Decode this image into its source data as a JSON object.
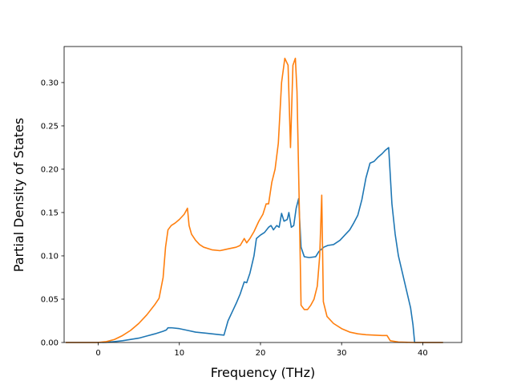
{
  "chart_data": {
    "type": "line",
    "title": "",
    "xlabel": "Frequency (THz)",
    "ylabel": "Partial Density of States",
    "xlim": [
      -4.2,
      44.8
    ],
    "ylim": [
      0,
      0.3416
    ],
    "xticks": [
      0,
      10,
      20,
      30,
      40
    ],
    "xtick_labels": [
      "0",
      "10",
      "20",
      "30",
      "40"
    ],
    "yticks": [
      0,
      0.05,
      0.1,
      0.15,
      0.2,
      0.25,
      0.3
    ],
    "ytick_labels": [
      "0.00",
      "0.05",
      "0.10",
      "0.15",
      "0.20",
      "0.25",
      "0.30"
    ],
    "grid": false,
    "legend": "none",
    "series": [
      {
        "color": "#1f77b4",
        "points": [
          [
            -4.0,
            0.0
          ],
          [
            0.0,
            0.0
          ],
          [
            1.0,
            0.0002
          ],
          [
            2.0,
            0.001
          ],
          [
            3.0,
            0.002
          ],
          [
            4.0,
            0.0035
          ],
          [
            5.0,
            0.005
          ],
          [
            6.0,
            0.0075
          ],
          [
            7.0,
            0.01
          ],
          [
            8.0,
            0.013
          ],
          [
            8.4,
            0.0145
          ],
          [
            8.6,
            0.017
          ],
          [
            9.0,
            0.017
          ],
          [
            10.0,
            0.016
          ],
          [
            11.0,
            0.014
          ],
          [
            12.0,
            0.012
          ],
          [
            14.0,
            0.01
          ],
          [
            15.0,
            0.009
          ],
          [
            15.5,
            0.0085
          ],
          [
            16.0,
            0.025
          ],
          [
            16.5,
            0.035
          ],
          [
            17.0,
            0.045
          ],
          [
            17.5,
            0.056
          ],
          [
            18.0,
            0.07
          ],
          [
            18.3,
            0.069
          ],
          [
            18.7,
            0.08
          ],
          [
            19.2,
            0.1
          ],
          [
            19.5,
            0.12
          ],
          [
            20.0,
            0.124
          ],
          [
            20.5,
            0.127
          ],
          [
            21.0,
            0.133
          ],
          [
            21.3,
            0.135
          ],
          [
            21.6,
            0.13
          ],
          [
            22.0,
            0.135
          ],
          [
            22.3,
            0.133
          ],
          [
            22.6,
            0.149
          ],
          [
            22.9,
            0.14
          ],
          [
            23.3,
            0.142
          ],
          [
            23.5,
            0.15
          ],
          [
            23.8,
            0.133
          ],
          [
            24.1,
            0.135
          ],
          [
            24.4,
            0.155
          ],
          [
            24.7,
            0.166
          ],
          [
            25.0,
            0.11
          ],
          [
            25.4,
            0.099
          ],
          [
            26.0,
            0.098
          ],
          [
            26.8,
            0.099
          ],
          [
            27.2,
            0.105
          ],
          [
            27.8,
            0.11
          ],
          [
            28.3,
            0.112
          ],
          [
            29.0,
            0.113
          ],
          [
            29.8,
            0.118
          ],
          [
            30.5,
            0.125
          ],
          [
            31.0,
            0.13
          ],
          [
            31.5,
            0.138
          ],
          [
            32.0,
            0.147
          ],
          [
            32.5,
            0.165
          ],
          [
            33.0,
            0.19
          ],
          [
            33.5,
            0.207
          ],
          [
            34.0,
            0.209
          ],
          [
            34.5,
            0.214
          ],
          [
            35.0,
            0.218
          ],
          [
            35.4,
            0.222
          ],
          [
            35.8,
            0.225
          ],
          [
            36.2,
            0.16
          ],
          [
            36.6,
            0.125
          ],
          [
            37.0,
            0.1
          ],
          [
            37.5,
            0.08
          ],
          [
            38.0,
            0.06
          ],
          [
            38.5,
            0.04
          ],
          [
            38.8,
            0.02
          ],
          [
            39.0,
            0.0
          ],
          [
            42.5,
            0.0
          ]
        ]
      },
      {
        "color": "#ff7f0e",
        "points": [
          [
            -4.0,
            0.0
          ],
          [
            0.0,
            0.0
          ],
          [
            0.5,
            0.0005
          ],
          [
            1.0,
            0.001
          ],
          [
            2.0,
            0.0035
          ],
          [
            3.0,
            0.008
          ],
          [
            4.0,
            0.014
          ],
          [
            5.0,
            0.022
          ],
          [
            6.0,
            0.032
          ],
          [
            7.0,
            0.044
          ],
          [
            7.5,
            0.051
          ],
          [
            8.0,
            0.075
          ],
          [
            8.3,
            0.11
          ],
          [
            8.6,
            0.13
          ],
          [
            9.0,
            0.135
          ],
          [
            9.5,
            0.138
          ],
          [
            10.0,
            0.142
          ],
          [
            10.6,
            0.148
          ],
          [
            11.0,
            0.155
          ],
          [
            11.2,
            0.135
          ],
          [
            11.5,
            0.125
          ],
          [
            12.0,
            0.118
          ],
          [
            12.5,
            0.113
          ],
          [
            13.0,
            0.11
          ],
          [
            14.0,
            0.107
          ],
          [
            15.0,
            0.106
          ],
          [
            15.5,
            0.107
          ],
          [
            16.0,
            0.108
          ],
          [
            17.0,
            0.11
          ],
          [
            17.5,
            0.112
          ],
          [
            18.0,
            0.12
          ],
          [
            18.3,
            0.115
          ],
          [
            18.7,
            0.12
          ],
          [
            19.2,
            0.128
          ],
          [
            19.8,
            0.14
          ],
          [
            20.3,
            0.148
          ],
          [
            20.7,
            0.16
          ],
          [
            21.0,
            0.16
          ],
          [
            21.4,
            0.185
          ],
          [
            21.8,
            0.2
          ],
          [
            22.2,
            0.23
          ],
          [
            22.6,
            0.3
          ],
          [
            23.0,
            0.328
          ],
          [
            23.4,
            0.32
          ],
          [
            23.7,
            0.225
          ],
          [
            24.0,
            0.32
          ],
          [
            24.3,
            0.328
          ],
          [
            24.5,
            0.29
          ],
          [
            24.8,
            0.15
          ],
          [
            25.0,
            0.043
          ],
          [
            25.4,
            0.038
          ],
          [
            25.8,
            0.038
          ],
          [
            26.2,
            0.043
          ],
          [
            26.6,
            0.05
          ],
          [
            27.0,
            0.065
          ],
          [
            27.3,
            0.1
          ],
          [
            27.55,
            0.17
          ],
          [
            27.75,
            0.047
          ],
          [
            28.2,
            0.03
          ],
          [
            29.0,
            0.022
          ],
          [
            30.0,
            0.016
          ],
          [
            31.0,
            0.012
          ],
          [
            32.0,
            0.01
          ],
          [
            33.0,
            0.009
          ],
          [
            34.0,
            0.0085
          ],
          [
            35.0,
            0.008
          ],
          [
            35.6,
            0.008
          ],
          [
            36.0,
            0.002
          ],
          [
            37.0,
            0.0005
          ],
          [
            39.0,
            0.0
          ],
          [
            42.5,
            0.0
          ]
        ]
      }
    ]
  }
}
